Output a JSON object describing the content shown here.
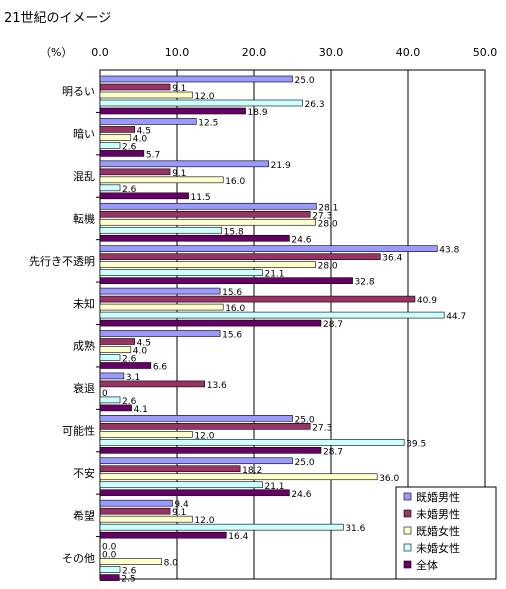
{
  "chart_data": {
    "type": "bar",
    "orientation": "horizontal",
    "title": "21世紀のイメージ",
    "unit_label": "（%）",
    "xlim": [
      0,
      50
    ],
    "xticks": [
      "0.0",
      "10.0",
      "20.0",
      "30.0",
      "40.0",
      "50.0"
    ],
    "grid": true,
    "legend_position": "bottom-right",
    "categories": [
      "明るい",
      "暗い",
      "混乱",
      "転機",
      "先行き不透明",
      "未知",
      "成熟",
      "衰退",
      "可能性",
      "不安",
      "希望",
      "その他"
    ],
    "series": [
      {
        "name": "既婚男性",
        "color": "#9999ff",
        "values": [
          25.0,
          12.5,
          21.9,
          28.1,
          43.8,
          15.6,
          15.6,
          3.1,
          25.0,
          25.0,
          9.4,
          0.0
        ]
      },
      {
        "name": "未婚男性",
        "color": "#993366",
        "values": [
          9.1,
          4.5,
          9.1,
          27.3,
          36.4,
          40.9,
          4.5,
          13.6,
          27.3,
          18.2,
          9.1,
          0.0
        ]
      },
      {
        "name": "既婚女性",
        "color": "#ffffcc",
        "values": [
          12.0,
          4.0,
          16.0,
          28.0,
          28.0,
          16.0,
          4.0,
          0,
          12.0,
          36.0,
          12.0,
          8.0
        ]
      },
      {
        "name": "未婚女性",
        "color": "#ccffff",
        "values": [
          26.3,
          2.6,
          2.6,
          15.8,
          21.1,
          44.7,
          2.6,
          2.6,
          39.5,
          21.1,
          31.6,
          2.6
        ]
      },
      {
        "name": "全体",
        "color": "#660066",
        "values": [
          18.9,
          5.7,
          11.5,
          24.6,
          32.8,
          28.7,
          6.6,
          4.1,
          28.7,
          24.6,
          16.4,
          2.5
        ]
      }
    ],
    "value_labels": [
      [
        "25.0",
        "9.1",
        "12.0",
        "26.3",
        "18.9"
      ],
      [
        "12.5",
        "4.5",
        "4.0",
        "2.6",
        "5.7"
      ],
      [
        "21.9",
        "9.1",
        "16.0",
        "2.6",
        "11.5"
      ],
      [
        "28.1",
        "27.3",
        "28.0",
        "15.8",
        "24.6"
      ],
      [
        "43.8",
        "36.4",
        "28.0",
        "21.1",
        "32.8"
      ],
      [
        "15.6",
        "40.9",
        "16.0",
        "44.7",
        "28.7"
      ],
      [
        "15.6",
        "4.5",
        "4.0",
        "2.6",
        "6.6"
      ],
      [
        "3.1",
        "13.6",
        "0",
        "2.6",
        "4.1"
      ],
      [
        "25.0",
        "27.3",
        "12.0",
        "39.5",
        "28.7"
      ],
      [
        "25.0",
        "18.2",
        "36.0",
        "21.1",
        "24.6"
      ],
      [
        "9.4",
        "9.1",
        "12.0",
        "31.6",
        "16.4"
      ],
      [
        "0.0",
        "0.0",
        "8.0",
        "2.6",
        "2.5"
      ]
    ]
  }
}
